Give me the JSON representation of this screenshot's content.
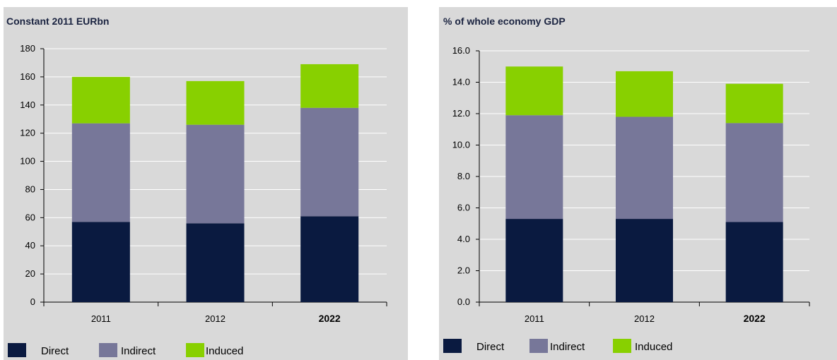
{
  "chart_data": [
    {
      "type": "bar",
      "stacked": true,
      "title": "Constant 2011 EURbn",
      "categories": [
        "2011",
        "2012",
        "2022"
      ],
      "bold_categories": [
        "2022"
      ],
      "series": [
        {
          "name": "Direct",
          "color": "#0a1a40",
          "values": [
            57,
            56,
            61
          ]
        },
        {
          "name": "Indirect",
          "color": "#777799",
          "values": [
            70,
            70,
            77
          ]
        },
        {
          "name": "Induced",
          "color": "#88d000",
          "values": [
            33,
            31,
            31
          ]
        }
      ],
      "ylim": [
        0,
        180
      ],
      "yticks": [
        "0",
        "20",
        "40",
        "60",
        "80",
        "100",
        "120",
        "140",
        "160",
        "180"
      ],
      "grid": true,
      "legend": "bottom"
    },
    {
      "type": "bar",
      "stacked": true,
      "title": "% of whole economy GDP",
      "categories": [
        "2011",
        "2012",
        "2022"
      ],
      "bold_categories": [
        "2022"
      ],
      "series": [
        {
          "name": "Direct",
          "color": "#0a1a40",
          "values": [
            5.3,
            5.3,
            5.1
          ]
        },
        {
          "name": "Indirect",
          "color": "#777799",
          "values": [
            6.6,
            6.5,
            6.3
          ]
        },
        {
          "name": "Induced",
          "color": "#88d000",
          "values": [
            3.1,
            2.9,
            2.5
          ]
        }
      ],
      "ylim": [
        0,
        16
      ],
      "yticks": [
        "0.0",
        "2.0",
        "4.0",
        "6.0",
        "8.0",
        "10.0",
        "12.0",
        "14.0",
        "16.0"
      ],
      "grid": true,
      "legend": "bottom"
    }
  ]
}
